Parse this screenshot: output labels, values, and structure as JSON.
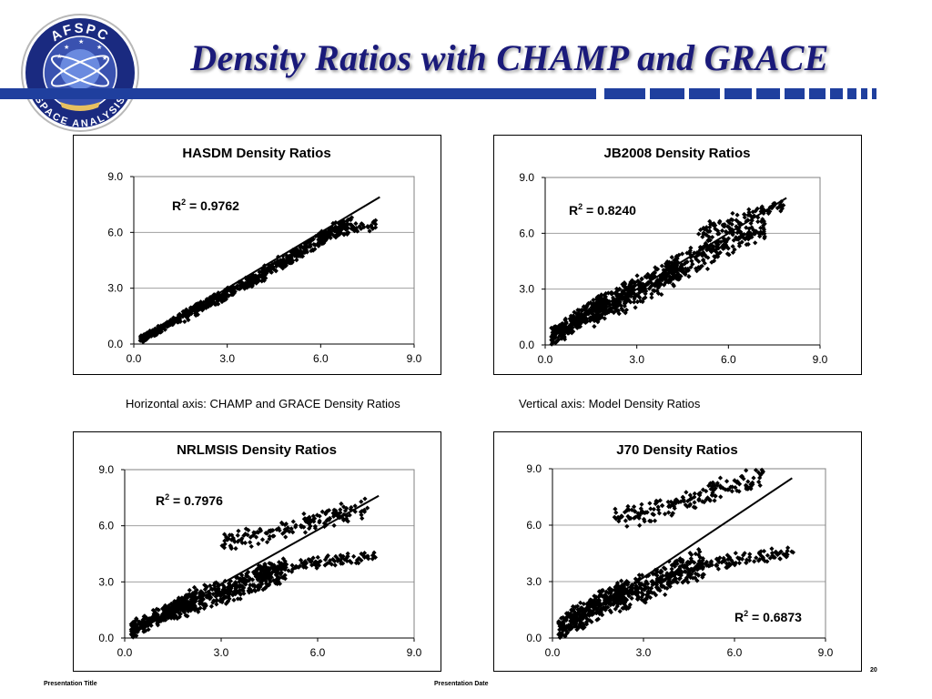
{
  "slide": {
    "title": "Density Ratios with CHAMP and GRACE",
    "logo_top_text": "AFSPC",
    "logo_bottom_text": "SPACE ANALYSIS",
    "horizontal_axis_note": "Horizontal axis:  CHAMP and GRACE Density Ratios",
    "vertical_axis_note": "Vertical axis:  Model Density Ratios",
    "footer_title": "Presentation Title",
    "footer_date": "Presentation Date",
    "page_number": "20"
  },
  "colors": {
    "title": "#1a1a7a",
    "bar": "#1f3f9e",
    "logo_ring": "#1a2a80",
    "points": "#000000"
  },
  "chart_data": [
    {
      "type": "scatter",
      "title": "HASDM Density Ratios",
      "r2_label": "R",
      "r2_sup": "2",
      "r2_value": " = 0.9762",
      "xlim": [
        0,
        9
      ],
      "ylim": [
        0,
        9
      ],
      "xticks": [
        "0.0",
        "3.0",
        "6.0",
        "9.0"
      ],
      "yticks": [
        "0.0",
        "3.0",
        "6.0",
        "9.0"
      ],
      "fit_line": [
        [
          0.2,
          0.2
        ],
        [
          7.9,
          7.9
        ]
      ],
      "bands": [
        {
          "x0": 0.2,
          "x1": 1.5,
          "y0": 0.25,
          "y1": 1.4,
          "spread": 0.25,
          "n": 160
        },
        {
          "x0": 1.5,
          "x1": 4.0,
          "y0": 1.4,
          "y1": 3.6,
          "spread": 0.35,
          "n": 260
        },
        {
          "x0": 4.0,
          "x1": 7.0,
          "y0": 3.6,
          "y1": 6.7,
          "spread": 0.45,
          "n": 260
        },
        {
          "x0": 6.0,
          "x1": 7.8,
          "y0": 5.8,
          "y1": 6.4,
          "spread": 0.35,
          "n": 60
        }
      ]
    },
    {
      "type": "scatter",
      "title": "JB2008 Density Ratios",
      "r2_label": "R",
      "r2_sup": "2",
      "r2_value": " = 0.8240",
      "xlim": [
        0,
        9
      ],
      "ylim": [
        0,
        9
      ],
      "xticks": [
        "0.0",
        "3.0",
        "6.0",
        "9.0"
      ],
      "yticks": [
        "0.0",
        "3.0",
        "6.0",
        "9.0"
      ],
      "fit_line": [
        [
          0.2,
          0.2
        ],
        [
          7.9,
          7.9
        ]
      ],
      "bands": [
        {
          "x0": 0.2,
          "x1": 2.0,
          "y0": 0.4,
          "y1": 2.4,
          "spread": 0.6,
          "n": 320
        },
        {
          "x0": 1.5,
          "x1": 4.5,
          "y0": 1.6,
          "y1": 4.2,
          "spread": 0.9,
          "n": 360
        },
        {
          "x0": 4.0,
          "x1": 7.2,
          "y0": 3.8,
          "y1": 6.5,
          "spread": 0.9,
          "n": 220
        },
        {
          "x0": 5.0,
          "x1": 7.8,
          "y0": 6.0,
          "y1": 7.6,
          "spread": 0.5,
          "n": 90
        }
      ]
    },
    {
      "type": "scatter",
      "title": "NRLMSIS Density Ratios",
      "r2_label": "R",
      "r2_sup": "2",
      "r2_value": " = 0.7976",
      "xlim": [
        0,
        9
      ],
      "ylim": [
        0,
        9
      ],
      "xticks": [
        "0.0",
        "3.0",
        "6.0",
        "9.0"
      ],
      "yticks": [
        "0.0",
        "3.0",
        "6.0",
        "9.0"
      ],
      "fit_line": [
        [
          0.2,
          0.2
        ],
        [
          7.9,
          7.6
        ]
      ],
      "bands": [
        {
          "x0": 0.2,
          "x1": 2.2,
          "y0": 0.5,
          "y1": 2.0,
          "spread": 0.55,
          "n": 320
        },
        {
          "x0": 1.5,
          "x1": 5.0,
          "y0": 1.6,
          "y1": 3.6,
          "spread": 0.8,
          "n": 380
        },
        {
          "x0": 4.0,
          "x1": 7.8,
          "y0": 3.6,
          "y1": 4.4,
          "spread": 0.35,
          "n": 120
        },
        {
          "x0": 3.0,
          "x1": 7.6,
          "y0": 5.0,
          "y1": 7.0,
          "spread": 0.6,
          "n": 160
        }
      ]
    },
    {
      "type": "scatter",
      "title": "J70 Density Ratios",
      "r2_label": "R",
      "r2_sup": "2",
      "r2_value": " = 0.6873",
      "xlim": [
        0,
        9
      ],
      "ylim": [
        0,
        9
      ],
      "xticks": [
        "0.0",
        "3.0",
        "6.0",
        "9.0"
      ],
      "yticks": [
        "0.0",
        "3.0",
        "6.0",
        "9.0"
      ],
      "fit_line": [
        [
          0.2,
          0.2
        ],
        [
          7.9,
          8.5
        ]
      ],
      "bands": [
        {
          "x0": 0.2,
          "x1": 2.5,
          "y0": 0.5,
          "y1": 2.6,
          "spread": 0.8,
          "n": 340
        },
        {
          "x0": 2.0,
          "x1": 5.0,
          "y0": 2.0,
          "y1": 4.0,
          "spread": 0.9,
          "n": 320
        },
        {
          "x0": 2.0,
          "x1": 7.0,
          "y0": 6.2,
          "y1": 8.6,
          "spread": 0.7,
          "n": 180
        },
        {
          "x0": 4.5,
          "x1": 8.0,
          "y0": 3.8,
          "y1": 4.6,
          "spread": 0.4,
          "n": 100
        }
      ]
    }
  ]
}
